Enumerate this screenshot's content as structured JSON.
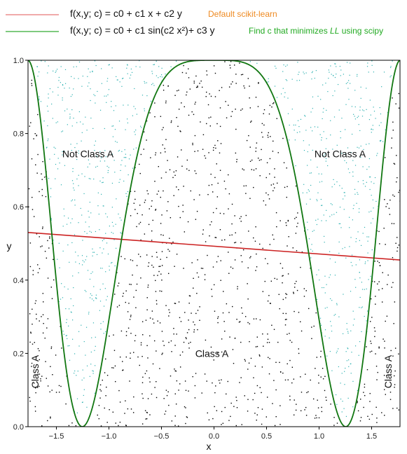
{
  "legend": {
    "entries": [
      {
        "formula": "f(x,y; c) = c0 + c1 x + c2 y",
        "note": "Default scikit-learn",
        "line_color": "#e87878",
        "note_color": "#ee8a22"
      },
      {
        "formula": "f(x,y; c) = c0 + c1 sin(c2 x²)+ c3 y",
        "note_parts": [
          "Find c that minimizes ",
          "LL",
          " using scipy"
        ],
        "line_color": "#33aa33",
        "note_color": "#22aa22"
      }
    ]
  },
  "chart_data": {
    "type": "scatter",
    "title": "",
    "xlabel": "x",
    "ylabel": "y",
    "xlim": [
      -1.77,
      1.77
    ],
    "ylim": [
      0.0,
      1.0
    ],
    "xticks": [
      -1.5,
      -1.0,
      -0.5,
      0.0,
      0.5,
      1.0,
      1.5
    ],
    "xtick_labels": [
      "−1.5",
      "−1.0",
      "−0.5",
      "0.0",
      "0.5",
      "1.0",
      "1.5"
    ],
    "yticks": [
      0.0,
      0.2,
      0.4,
      0.6,
      0.8,
      1.0
    ],
    "ytick_labels": [
      "0.0",
      "0.2",
      "0.4",
      "0.6",
      "0.8",
      "1.0"
    ],
    "grid": false,
    "series": [
      {
        "kind": "line",
        "formula": "f(x,y; c) = c0 + c1 x + c2 y",
        "x": [
          -1.77,
          1.77
        ],
        "y": [
          0.53,
          0.455
        ],
        "color": "#cc2222"
      },
      {
        "kind": "curve",
        "formula": "f(x,y; c) = c0 + c1 sin(c2 x²)+ c3 y",
        "equation": "y = cos(x²)^2",
        "color": "#117711"
      },
      {
        "kind": "points",
        "class": "Class A",
        "color": "#000000",
        "count": 1100,
        "rule": "y < cos(x²)^2"
      },
      {
        "kind": "points",
        "class": "Not Class A",
        "color": "#2bb0b0",
        "count": 900,
        "rule": "y > cos(x²)^2"
      }
    ],
    "annotations": [
      {
        "text": "Not Class A",
        "x": -1.2,
        "y": 0.735,
        "rotate": 0
      },
      {
        "text": "Not Class A",
        "x": 1.2,
        "y": 0.735,
        "rotate": 0
      },
      {
        "text": "Class A",
        "x": -0.02,
        "y": 0.19,
        "rotate": 0
      },
      {
        "text": "Class A",
        "x": -1.67,
        "y": 0.15,
        "rotate": -90
      },
      {
        "text": "Class A",
        "x": 1.69,
        "y": 0.15,
        "rotate": -90
      }
    ]
  }
}
